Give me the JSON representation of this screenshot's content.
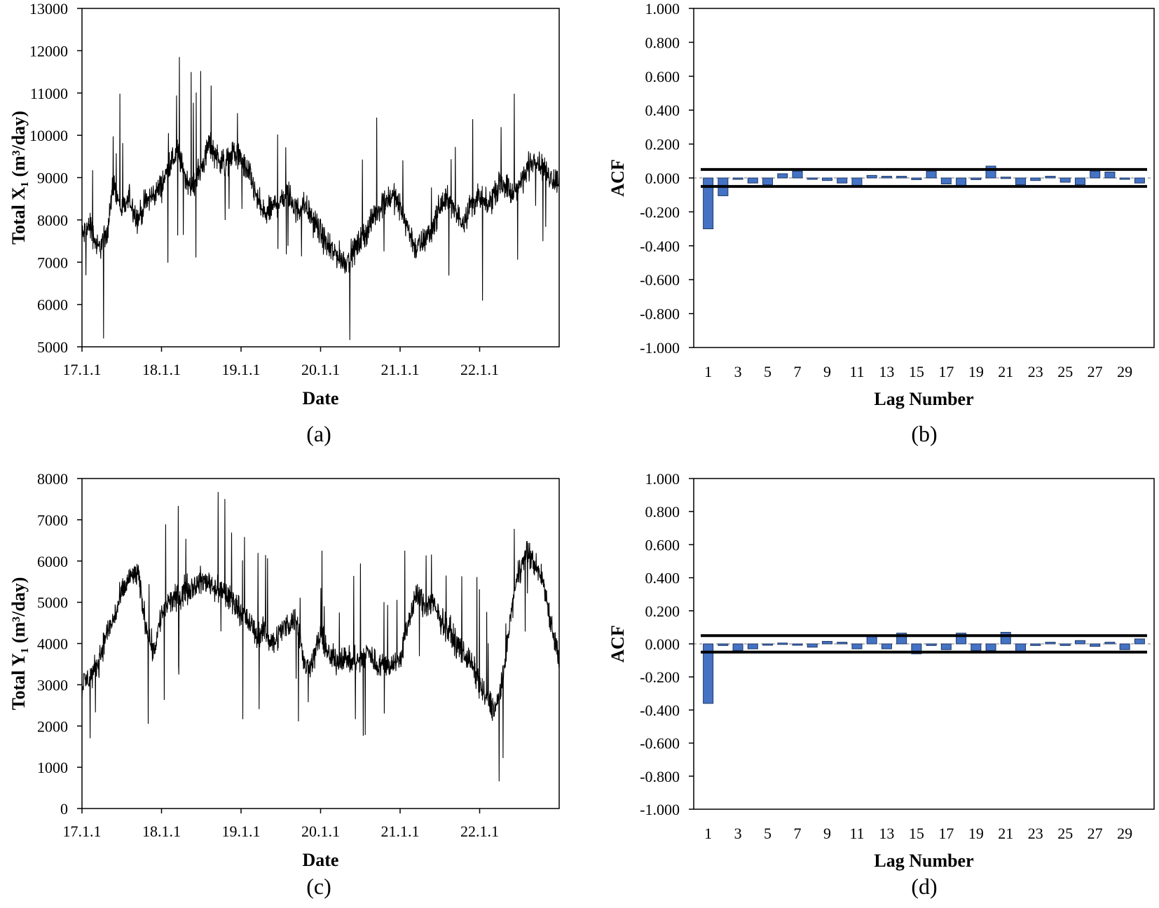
{
  "figure": {
    "panels": [
      {
        "label": "(a)"
      },
      {
        "label": "(b)"
      },
      {
        "label": "(c)"
      },
      {
        "label": "(d)"
      }
    ]
  },
  "chart_data": [
    {
      "type": "line",
      "panel_label": "(a)",
      "xlabel": "Date",
      "ylabel": "Total X₁ (m³/day)",
      "x_tick_labels": [
        "17.1.1",
        "18.1.1",
        "19.1.1",
        "20.1.1",
        "21.1.1",
        "22.1.1"
      ],
      "y_ticks": [
        5000,
        6000,
        7000,
        8000,
        9000,
        10000,
        11000,
        12000,
        13000
      ],
      "ylim": [
        5000,
        13000
      ],
      "x_range_years": [
        2017,
        2023
      ],
      "series": [
        {
          "color": "#000000",
          "x": [
            2017.0,
            2017.1,
            2017.2,
            2017.3,
            2017.4,
            2017.5,
            2017.6,
            2017.7,
            2017.8,
            2017.9,
            2018.0,
            2018.1,
            2018.2,
            2018.3,
            2018.4,
            2018.5,
            2018.6,
            2018.7,
            2018.8,
            2018.9,
            2019.0,
            2019.1,
            2019.2,
            2019.3,
            2019.4,
            2019.5,
            2019.6,
            2019.7,
            2019.8,
            2019.9,
            2020.0,
            2020.1,
            2020.2,
            2020.3,
            2020.4,
            2020.5,
            2020.6,
            2020.7,
            2020.8,
            2020.9,
            2021.0,
            2021.1,
            2021.2,
            2021.3,
            2021.4,
            2021.5,
            2021.6,
            2021.7,
            2021.8,
            2021.9,
            2022.0,
            2022.1,
            2022.2,
            2022.3,
            2022.4,
            2022.5,
            2022.6,
            2022.7,
            2022.8,
            2022.9,
            2023.0
          ],
          "y": [
            7600,
            7900,
            7300,
            7600,
            8800,
            8200,
            8500,
            8000,
            8400,
            8600,
            8800,
            9300,
            9600,
            9000,
            8800,
            9200,
            9800,
            9500,
            9300,
            9600,
            9400,
            9100,
            8500,
            8100,
            8300,
            8500,
            8600,
            8200,
            8400,
            8000,
            7700,
            7300,
            7200,
            7000,
            7200,
            7500,
            7800,
            8200,
            8400,
            8600,
            8300,
            7800,
            7300,
            7500,
            7800,
            8300,
            8500,
            8100,
            8000,
            8400,
            8500,
            8300,
            8700,
            8900,
            8600,
            8800,
            9200,
            9500,
            9200,
            9000,
            8900
          ]
        }
      ]
    },
    {
      "type": "bar",
      "panel_label": "(b)",
      "xlabel": "Lag Number",
      "ylabel": "ACF",
      "x_tick_labels": [
        "1",
        "3",
        "5",
        "7",
        "9",
        "11",
        "13",
        "15",
        "17",
        "19",
        "21",
        "23",
        "25",
        "27",
        "29"
      ],
      "y_tick_labels": [
        "1.000",
        "0.800",
        "0.600",
        "0.400",
        "0.200",
        "0.000",
        "-0.200",
        "-0.400",
        "-0.600",
        "-0.800",
        "-1.000"
      ],
      "ylim": [
        -1,
        1
      ],
      "lags": [
        1,
        2,
        3,
        4,
        5,
        6,
        7,
        8,
        9,
        10,
        11,
        12,
        13,
        14,
        15,
        16,
        17,
        18,
        19,
        20,
        21,
        22,
        23,
        24,
        25,
        26,
        27,
        28,
        29,
        30
      ],
      "values": [
        -0.3,
        -0.105,
        0.0,
        -0.03,
        -0.04,
        0.025,
        0.04,
        -0.005,
        -0.015,
        -0.03,
        -0.045,
        0.015,
        0.01,
        0.01,
        -0.01,
        0.04,
        -0.035,
        -0.045,
        -0.01,
        0.07,
        0.005,
        -0.04,
        -0.015,
        0.01,
        -0.025,
        -0.04,
        0.04,
        0.035,
        0.0,
        -0.03
      ],
      "confidence_limits": [
        0.05,
        -0.05
      ],
      "bar_color": "#4472c4"
    },
    {
      "type": "line",
      "panel_label": "(c)",
      "xlabel": "Date",
      "ylabel": "Total Y₁ (m³/day)",
      "x_tick_labels": [
        "17.1.1",
        "18.1.1",
        "19.1.1",
        "20.1.1",
        "21.1.1",
        "22.1.1"
      ],
      "y_ticks": [
        0,
        1000,
        2000,
        3000,
        4000,
        5000,
        6000,
        7000,
        8000
      ],
      "ylim": [
        0,
        8000
      ],
      "x_range_years": [
        2017,
        2023
      ],
      "series": [
        {
          "color": "#000000",
          "x": [
            2017.0,
            2017.1,
            2017.2,
            2017.3,
            2017.4,
            2017.5,
            2017.6,
            2017.7,
            2017.8,
            2017.9,
            2018.0,
            2018.1,
            2018.2,
            2018.3,
            2018.4,
            2018.5,
            2018.6,
            2018.7,
            2018.8,
            2018.9,
            2019.0,
            2019.1,
            2019.2,
            2019.3,
            2019.4,
            2019.5,
            2019.6,
            2019.7,
            2019.8,
            2019.9,
            2020.0,
            2020.1,
            2020.2,
            2020.3,
            2020.4,
            2020.5,
            2020.6,
            2020.7,
            2020.8,
            2020.9,
            2021.0,
            2021.1,
            2021.2,
            2021.3,
            2021.4,
            2021.5,
            2021.6,
            2021.7,
            2021.8,
            2021.9,
            2022.0,
            2022.1,
            2022.2,
            2022.3,
            2022.4,
            2022.5,
            2022.6,
            2022.7,
            2022.8,
            2022.9,
            2023.0
          ],
          "y": [
            3000,
            3200,
            3500,
            4200,
            4600,
            5200,
            5600,
            5700,
            4500,
            3800,
            4700,
            5000,
            5100,
            5300,
            5400,
            5500,
            5500,
            5300,
            5200,
            5000,
            4800,
            4500,
            4200,
            4300,
            4000,
            4300,
            4500,
            4600,
            3400,
            3600,
            4200,
            3700,
            3600,
            3700,
            3500,
            3600,
            3800,
            3500,
            3500,
            3500,
            3600,
            4500,
            5200,
            4900,
            5000,
            4600,
            4400,
            4000,
            3800,
            3500,
            3000,
            2600,
            2400,
            3200,
            4800,
            5800,
            6200,
            5900,
            5500,
            4500,
            3600
          ]
        }
      ]
    },
    {
      "type": "bar",
      "panel_label": "(d)",
      "xlabel": "Lag Number",
      "ylabel": "ACF",
      "x_tick_labels": [
        "1",
        "3",
        "5",
        "7",
        "9",
        "11",
        "13",
        "15",
        "17",
        "19",
        "21",
        "23",
        "25",
        "27",
        "29"
      ],
      "y_tick_labels": [
        "1.000",
        "0.800",
        "0.600",
        "0.400",
        "0.200",
        "0.000",
        "-0.200",
        "-0.400",
        "-0.600",
        "-0.800",
        "-1.000"
      ],
      "ylim": [
        -1,
        1
      ],
      "lags": [
        1,
        2,
        3,
        4,
        5,
        6,
        7,
        8,
        9,
        10,
        11,
        12,
        13,
        14,
        15,
        16,
        17,
        18,
        19,
        20,
        21,
        22,
        23,
        24,
        25,
        26,
        27,
        28,
        29,
        30
      ],
      "values": [
        -0.36,
        -0.01,
        -0.04,
        -0.03,
        -0.005,
        0.005,
        -0.005,
        -0.02,
        0.015,
        0.01,
        -0.03,
        0.045,
        -0.03,
        0.065,
        -0.06,
        -0.01,
        -0.035,
        0.065,
        -0.04,
        -0.04,
        0.07,
        -0.05,
        -0.01,
        0.01,
        -0.01,
        0.02,
        -0.015,
        0.01,
        -0.035,
        0.03
      ],
      "confidence_limits": [
        0.05,
        -0.05
      ],
      "bar_color": "#4472c4"
    }
  ]
}
